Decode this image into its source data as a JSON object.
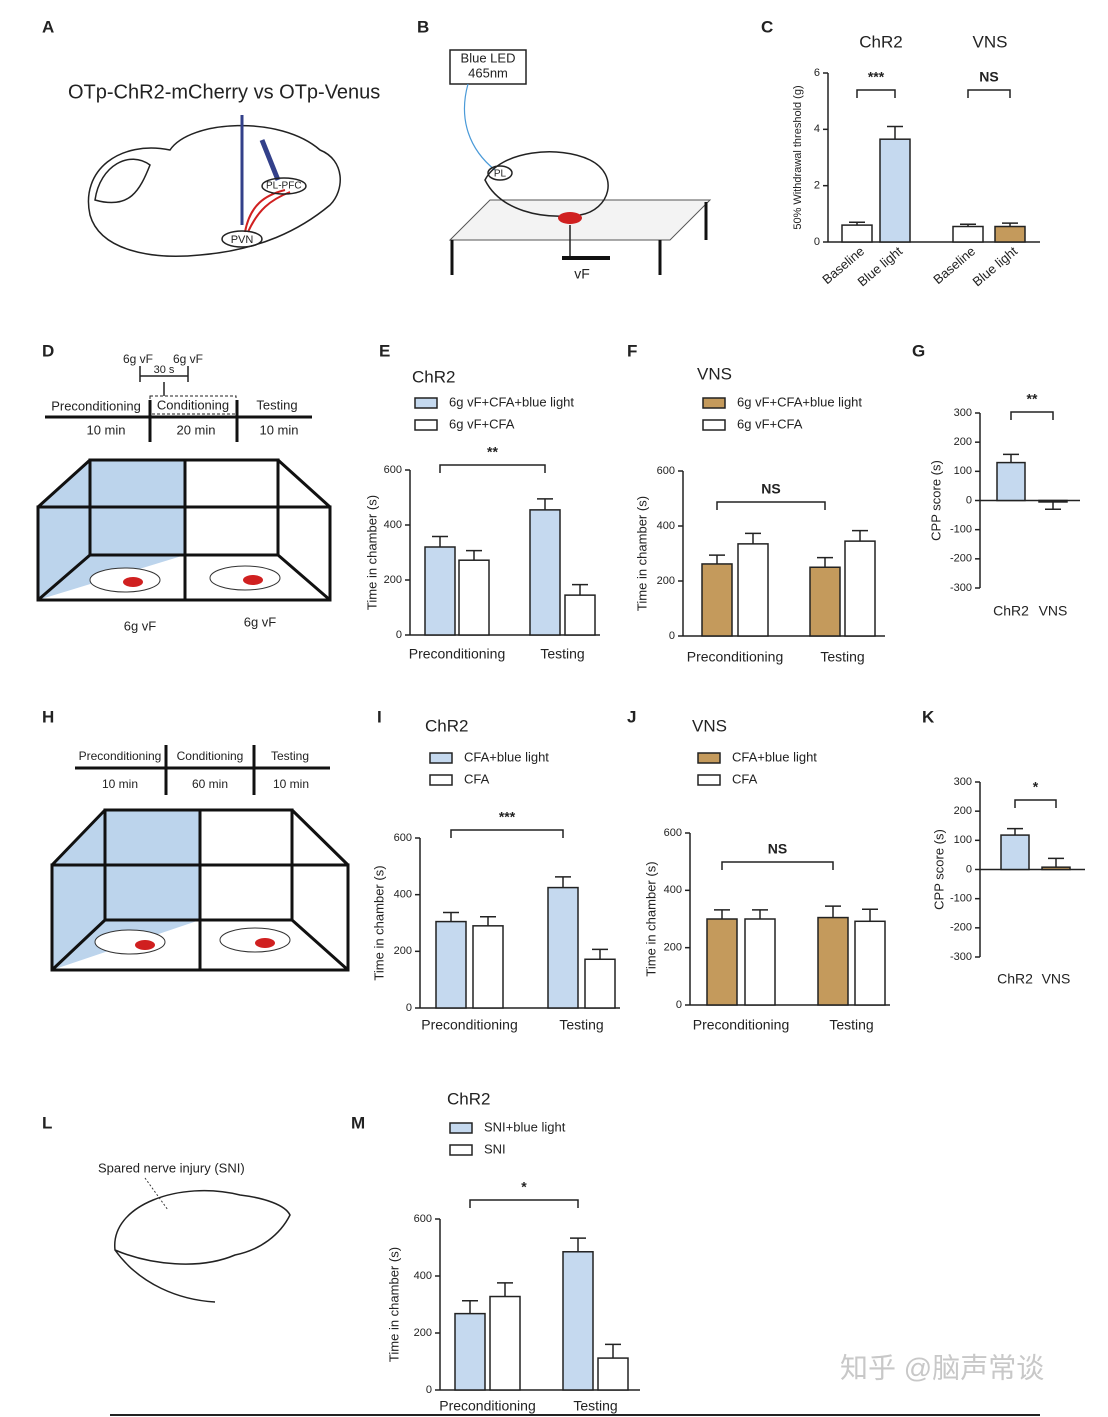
{
  "panel_labels": [
    "A",
    "B",
    "C",
    "D",
    "E",
    "F",
    "G",
    "H",
    "I",
    "J",
    "K",
    "L",
    "M"
  ],
  "diagram_a": {
    "title": "OTp-ChR2-mCherry vs OTp-Venus",
    "labels": [
      "PL-PFC",
      "PVN"
    ]
  },
  "diagram_b": {
    "led": [
      "Blue LED",
      "465nm"
    ],
    "labels": [
      "PL",
      "vF"
    ]
  },
  "diagram_d": {
    "stimulus": [
      "6g vF",
      "6g vF"
    ],
    "interval": "30 s",
    "phases": [
      "Preconditioning",
      "Conditioning",
      "Testing"
    ],
    "durations": [
      "10 min",
      "20 min",
      "10 min"
    ],
    "probes": [
      "6g vF",
      "6g vF"
    ]
  },
  "diagram_h": {
    "phases": [
      "Preconditioning",
      "Conditioning",
      "Testing"
    ],
    "durations": [
      "10 min",
      "60 min",
      "10 min"
    ]
  },
  "diagram_l": {
    "label": "Spared nerve injury (SNI)"
  },
  "watermark": "知乎 @脑声常谈",
  "chart_data": [
    {
      "type": "bar",
      "group_titles": [
        "ChR2",
        "VNS"
      ],
      "ylabel": "50% Withdrawal threshold (g)",
      "categories": [
        "Baseline",
        "Blue light",
        "Baseline",
        "Blue light"
      ],
      "values": [
        0.6,
        3.65,
        0.55,
        0.55
      ],
      "errors": [
        0.1,
        0.45,
        0.08,
        0.12
      ],
      "colors": [
        "#ffffff",
        "#c5d9ef",
        "#ffffff",
        "#c49a5c"
      ],
      "ylim": [
        0,
        6
      ],
      "yticks": [
        0,
        2,
        4,
        6
      ],
      "annotations": [
        "***",
        "NS"
      ]
    },
    {
      "type": "grouped_bar",
      "title": "ChR2",
      "ylabel": "Time in chamber (s)",
      "categories": [
        "Preconditioning",
        "Testing"
      ],
      "series": [
        {
          "name": "6g vF+CFA+blue light",
          "color": "#c5d9ef",
          "values": [
            320,
            455
          ],
          "errors": [
            38,
            40
          ]
        },
        {
          "name": "6g vF+CFA",
          "color": "#ffffff",
          "values": [
            272,
            145
          ],
          "errors": [
            35,
            38
          ]
        }
      ],
      "ylim": [
        0,
        600
      ],
      "yticks": [
        0,
        200,
        400,
        600
      ],
      "annotations": [
        "**"
      ]
    },
    {
      "type": "grouped_bar",
      "title": "VNS",
      "ylabel": "Time in chamber (s)",
      "categories": [
        "Preconditioning",
        "Testing"
      ],
      "series": [
        {
          "name": "6g vF+CFA+blue light",
          "color": "#c49a5c",
          "values": [
            262,
            250
          ],
          "errors": [
            32,
            35
          ]
        },
        {
          "name": "6g vF+CFA",
          "color": "#ffffff",
          "values": [
            335,
            345
          ],
          "errors": [
            38,
            38
          ]
        }
      ],
      "ylim": [
        0,
        600
      ],
      "yticks": [
        0,
        200,
        400,
        600
      ],
      "annotations": [
        "NS"
      ]
    },
    {
      "type": "bar",
      "ylabel": "CPP score (s)",
      "categories": [
        "ChR2",
        "VNS"
      ],
      "values": [
        130,
        -5
      ],
      "errors": [
        28,
        25
      ],
      "colors": [
        "#c5d9ef",
        "#c49a5c"
      ],
      "ylim": [
        -300,
        300
      ],
      "yticks": [
        -300,
        -200,
        -100,
        0,
        100,
        200,
        300
      ],
      "annotations": [
        "**"
      ]
    },
    {
      "type": "grouped_bar",
      "title": "ChR2",
      "ylabel": "Time in chamber (s)",
      "categories": [
        "Preconditioning",
        "Testing"
      ],
      "series": [
        {
          "name": "CFA+blue light",
          "color": "#c5d9ef",
          "values": [
            305,
            425
          ],
          "errors": [
            32,
            38
          ]
        },
        {
          "name": "CFA",
          "color": "#ffffff",
          "values": [
            290,
            172
          ],
          "errors": [
            32,
            35
          ]
        }
      ],
      "ylim": [
        0,
        600
      ],
      "yticks": [
        0,
        200,
        400,
        600
      ],
      "annotations": [
        "***"
      ]
    },
    {
      "type": "grouped_bar",
      "title": "VNS",
      "ylabel": "Time in chamber (s)",
      "categories": [
        "Preconditioning",
        "Testing"
      ],
      "series": [
        {
          "name": "CFA+blue light",
          "color": "#c49a5c",
          "values": [
            300,
            305
          ],
          "errors": [
            32,
            40
          ]
        },
        {
          "name": "CFA",
          "color": "#ffffff",
          "values": [
            300,
            292
          ],
          "errors": [
            32,
            42
          ]
        }
      ],
      "ylim": [
        0,
        600
      ],
      "yticks": [
        0,
        200,
        400,
        600
      ],
      "annotations": [
        "NS"
      ]
    },
    {
      "type": "bar",
      "ylabel": "CPP score (s)",
      "categories": [
        "ChR2",
        "VNS"
      ],
      "values": [
        118,
        8
      ],
      "errors": [
        22,
        30
      ],
      "colors": [
        "#c5d9ef",
        "#c49a5c"
      ],
      "ylim": [
        -300,
        300
      ],
      "yticks": [
        -300,
        -200,
        -100,
        0,
        100,
        200,
        300
      ],
      "annotations": [
        "*"
      ]
    },
    {
      "type": "grouped_bar",
      "title": "ChR2",
      "ylabel": "Time in chamber (s)",
      "categories": [
        "Preconditioning",
        "Testing"
      ],
      "series": [
        {
          "name": "SNI+blue light",
          "color": "#c5d9ef",
          "values": [
            268,
            485
          ],
          "errors": [
            45,
            48
          ]
        },
        {
          "name": "SNI",
          "color": "#ffffff",
          "values": [
            328,
            112
          ],
          "errors": [
            48,
            48
          ]
        }
      ],
      "ylim": [
        0,
        600
      ],
      "yticks": [
        0,
        200,
        400,
        600
      ],
      "annotations": [
        "*"
      ]
    }
  ]
}
